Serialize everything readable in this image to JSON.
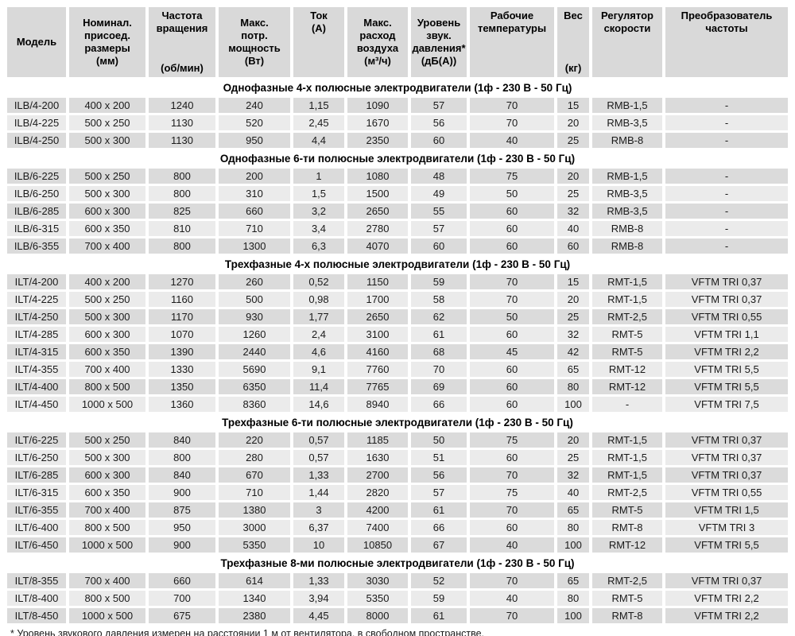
{
  "table": {
    "columns": {
      "model": "Модель",
      "size": "Номинал.\nприсоед.\nразмеры\n(мм)",
      "rpm_top": "Частота\nвращения",
      "rpm_bottom": "(об/мин)",
      "power": "Макс.\nпотр.\nмощность\n(Вт)",
      "current": "Ток\n(А)",
      "airflow": "Макс.\nрасход\nвоздуха\n(м³/ч)",
      "noise": "Уровень\nзвук.\nдавления*\n(дБ(А))",
      "temp": "Рабочие\nтемпературы",
      "weight_top": "Вес",
      "weight_bottom": "(кг)",
      "regulator": "Регулятор\nскорости",
      "converter": "Преобразователь\nчастоты"
    },
    "row_colors": {
      "odd": "#dbdbdb",
      "even": "#ebebeb",
      "header": "#d9d9d9"
    },
    "sections": [
      {
        "title": "Однофазные 4-х полюсные электродвигатели (1ф - 230 В - 50 Гц)",
        "rows": [
          [
            "ILB/4-200",
            "400 x 200",
            "1240",
            "240",
            "1,15",
            "1090",
            "57",
            "70",
            "15",
            "RMB-1,5",
            "-"
          ],
          [
            "ILB/4-225",
            "500 x 250",
            "1130",
            "520",
            "2,45",
            "1670",
            "56",
            "70",
            "20",
            "RMB-3,5",
            "-"
          ],
          [
            "ILB/4-250",
            "500 x 300",
            "1130",
            "950",
            "4,4",
            "2350",
            "60",
            "40",
            "25",
            "RMB-8",
            "-"
          ]
        ]
      },
      {
        "title": "Однофазные 6-ти полюсные электродвигатели (1ф - 230 В - 50 Гц)",
        "rows": [
          [
            "ILB/6-225",
            "500 x 250",
            "800",
            "200",
            "1",
            "1080",
            "48",
            "75",
            "20",
            "RMB-1,5",
            "-"
          ],
          [
            "ILB/6-250",
            "500 x 300",
            "800",
            "310",
            "1,5",
            "1500",
            "49",
            "50",
            "25",
            "RMB-3,5",
            "-"
          ],
          [
            "ILB/6-285",
            "600 x 300",
            "825",
            "660",
            "3,2",
            "2650",
            "55",
            "60",
            "32",
            "RMB-3,5",
            "-"
          ],
          [
            "ILB/6-315",
            "600 x 350",
            "810",
            "710",
            "3,4",
            "2780",
            "57",
            "60",
            "40",
            "RMB-8",
            "-"
          ],
          [
            "ILB/6-355",
            "700 x 400",
            "800",
            "1300",
            "6,3",
            "4070",
            "60",
            "60",
            "60",
            "RMB-8",
            "-"
          ]
        ]
      },
      {
        "title": "Трехфазные 4-х полюсные электродвигатели (1ф - 230 В - 50 Гц)",
        "rows": [
          [
            "ILT/4-200",
            "400 x 200",
            "1270",
            "260",
            "0,52",
            "1150",
            "59",
            "70",
            "15",
            "RMT-1,5",
            "VFTM TRI 0,37"
          ],
          [
            "ILT/4-225",
            "500 x 250",
            "1160",
            "500",
            "0,98",
            "1700",
            "58",
            "70",
            "20",
            "RMT-1,5",
            "VFTM TRI 0,37"
          ],
          [
            "ILT/4-250",
            "500 x 300",
            "1170",
            "930",
            "1,77",
            "2650",
            "62",
            "50",
            "25",
            "RMT-2,5",
            "VFTM TRI 0,55"
          ],
          [
            "ILT/4-285",
            "600 x 300",
            "1070",
            "1260",
            "2,4",
            "3100",
            "61",
            "60",
            "32",
            "RMT-5",
            "VFTM TRI 1,1"
          ],
          [
            "ILT/4-315",
            "600 x 350",
            "1390",
            "2440",
            "4,6",
            "4160",
            "68",
            "45",
            "42",
            "RMT-5",
            "VFTM TRI 2,2"
          ],
          [
            "ILT/4-355",
            "700 x 400",
            "1330",
            "5690",
            "9,1",
            "7760",
            "70",
            "60",
            "65",
            "RMT-12",
            "VFTM TRI 5,5"
          ],
          [
            "ILT/4-400",
            "800 x 500",
            "1350",
            "6350",
            "11,4",
            "7765",
            "69",
            "60",
            "80",
            "RMT-12",
            "VFTM TRI 5,5"
          ],
          [
            "ILT/4-450",
            "1000 x 500",
            "1360",
            "8360",
            "14,6",
            "8940",
            "66",
            "60",
            "100",
            "-",
            "VFTM TRI 7,5"
          ]
        ]
      },
      {
        "title": "Трехфазные 6-ти полюсные электродвигатели (1ф - 230 В - 50 Гц)",
        "rows": [
          [
            "ILT/6-225",
            "500 x 250",
            "840",
            "220",
            "0,57",
            "1185",
            "50",
            "75",
            "20",
            "RMT-1,5",
            "VFTM TRI 0,37"
          ],
          [
            "ILT/6-250",
            "500 x 300",
            "800",
            "280",
            "0,57",
            "1630",
            "51",
            "60",
            "25",
            "RMT-1,5",
            "VFTM TRI 0,37"
          ],
          [
            "ILT/6-285",
            "600 x 300",
            "840",
            "670",
            "1,33",
            "2700",
            "56",
            "70",
            "32",
            "RMT-1,5",
            "VFTM TRI 0,37"
          ],
          [
            "ILT/6-315",
            "600 x 350",
            "900",
            "710",
            "1,44",
            "2820",
            "57",
            "75",
            "40",
            "RMT-2,5",
            "VFTM TRI 0,55"
          ],
          [
            "ILT/6-355",
            "700 x 400",
            "875",
            "1380",
            "3",
            "4200",
            "61",
            "70",
            "65",
            "RMT-5",
            "VFTM TRI 1,5"
          ],
          [
            "ILT/6-400",
            "800 x 500",
            "950",
            "3000",
            "6,37",
            "7400",
            "66",
            "60",
            "80",
            "RMT-8",
            "VFTM TRI 3"
          ],
          [
            "ILT/6-450",
            "1000 x 500",
            "900",
            "5350",
            "10",
            "10850",
            "67",
            "40",
            "100",
            "RMT-12",
            "VFTM TRI 5,5"
          ]
        ]
      },
      {
        "title": "Трехфазные 8-ми полюсные электродвигатели (1ф - 230 В - 50 Гц)",
        "rows": [
          [
            "ILT/8-355",
            "700 x 400",
            "660",
            "614",
            "1,33",
            "3030",
            "52",
            "70",
            "65",
            "RMT-2,5",
            "VFTM TRI 0,37"
          ],
          [
            "ILT/8-400",
            "800 x 500",
            "700",
            "1340",
            "3,94",
            "5350",
            "59",
            "40",
            "80",
            "RMT-5",
            "VFTM TRI 2,2"
          ],
          [
            "ILT/8-450",
            "1000 x 500",
            "675",
            "2380",
            "4,45",
            "8000",
            "61",
            "70",
            "100",
            "RMT-8",
            "VFTM TRI 2,2"
          ]
        ]
      }
    ],
    "footnote": "* Уровень звукового давления измерен на расстоянии 1 м от вентилятора, в свободном пространстве."
  }
}
